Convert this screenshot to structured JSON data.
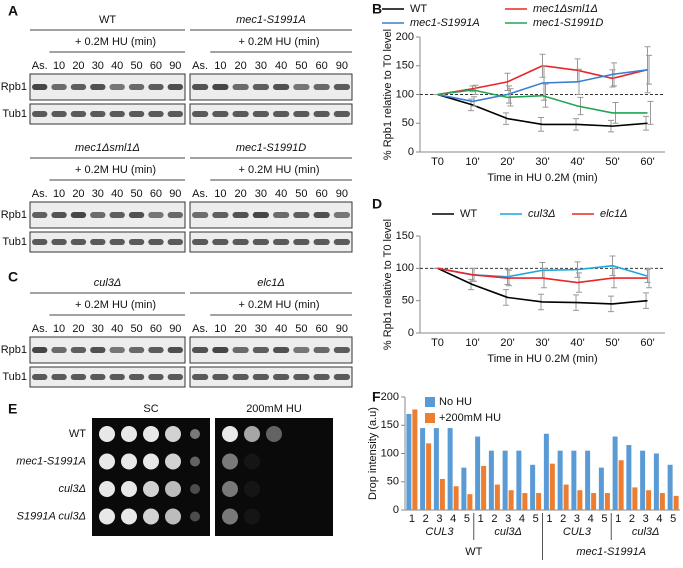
{
  "blot_panels": [
    {
      "label": "A",
      "blots": [
        {
          "title": "WT",
          "treatment": "+ 0.2M HU (min)",
          "lanes": [
            "As.",
            "10",
            "20",
            "30",
            "40",
            "50",
            "60",
            "90"
          ],
          "row_labels": [
            "Rpb1",
            "Tub1"
          ]
        },
        {
          "title": "mec1-S1991A",
          "treatment": "+ 0.2M HU (min)",
          "lanes": [
            "As.",
            "10",
            "20",
            "30",
            "40",
            "50",
            "60",
            "90"
          ]
        },
        {
          "title": "mec1Δsml1Δ",
          "treatment": "+ 0.2M HU (min)",
          "lanes": [
            "As.",
            "10",
            "20",
            "30",
            "40",
            "50",
            "60",
            "90"
          ],
          "row_labels": [
            "Rpb1",
            "Tub1"
          ]
        },
        {
          "title": "mec1-S1991D",
          "treatment": "+ 0.2M HU (min)",
          "lanes": [
            "As.",
            "10",
            "20",
            "30",
            "40",
            "50",
            "60",
            "90"
          ]
        }
      ]
    },
    {
      "label": "C",
      "blots": [
        {
          "title": "cul3Δ",
          "treatment": "+ 0.2M HU (min)",
          "lanes": [
            "As.",
            "10",
            "20",
            "30",
            "40",
            "50",
            "60",
            "90"
          ],
          "row_labels": [
            "Rpb1",
            "Tub1"
          ]
        },
        {
          "title": "elc1Δ",
          "treatment": "+ 0.2M HU (min)",
          "lanes": [
            "As.",
            "10",
            "20",
            "30",
            "40",
            "50",
            "60",
            "90"
          ]
        }
      ]
    }
  ],
  "spot_assay": {
    "label": "E",
    "conditions": [
      "SC",
      "200mM HU"
    ],
    "strains": [
      "WT",
      "mec1-S1991A",
      "cul3Δ",
      "S1991A cul3Δ"
    ]
  },
  "chart_data": [
    {
      "type": "line",
      "panel": "B",
      "categories": [
        "T0",
        "10'",
        "20'",
        "30'",
        "40'",
        "50'",
        "60'"
      ],
      "y_label": "% Rpb1 relative to T0 level",
      "x_label": "Time in HU 0.2M (min)",
      "ylim": [
        0,
        200
      ],
      "yticks": [
        0,
        50,
        100,
        150,
        200
      ],
      "reference_line": 100,
      "series": [
        {
          "name": "WT",
          "color": "#000000",
          "values": [
            100,
            82,
            58,
            48,
            48,
            45,
            50
          ],
          "errors": [
            0,
            10,
            10,
            12,
            10,
            10,
            12
          ]
        },
        {
          "name": "mec1Δsml1Δ",
          "color": "#e8262a",
          "values": [
            100,
            110,
            122,
            150,
            142,
            128,
            143
          ],
          "errors": [
            0,
            5,
            15,
            20,
            20,
            15,
            40
          ]
        },
        {
          "name": "mec1-S1991A",
          "color": "#3a7fd0",
          "values": [
            100,
            88,
            100,
            120,
            122,
            135,
            143
          ],
          "errors": [
            0,
            8,
            15,
            30,
            22,
            20,
            25
          ]
        },
        {
          "name": "mec1-S1991D",
          "color": "#23a455",
          "values": [
            100,
            108,
            95,
            98,
            80,
            68,
            68
          ],
          "errors": [
            0,
            8,
            15,
            20,
            15,
            18,
            20
          ]
        }
      ]
    },
    {
      "type": "line",
      "panel": "D",
      "categories": [
        "T0",
        "10'",
        "20'",
        "30'",
        "40'",
        "50'",
        "60'"
      ],
      "y_label": "% Rpb1 relative to T0 level",
      "x_label": "Time in HU 0.2M (min)",
      "ylim": [
        0,
        150
      ],
      "yticks": [
        0,
        50,
        100,
        150
      ],
      "reference_line": 100,
      "series": [
        {
          "name": "WT",
          "color": "#000000",
          "values": [
            100,
            75,
            55,
            48,
            47,
            45,
            50
          ],
          "errors": [
            0,
            8,
            12,
            12,
            12,
            12,
            12
          ]
        },
        {
          "name": "cul3Δ",
          "color": "#1aa7dc",
          "values": [
            100,
            90,
            87,
            97,
            98,
            104,
            88
          ],
          "errors": [
            0,
            10,
            12,
            12,
            12,
            15,
            10
          ]
        },
        {
          "name": "elc1Δ",
          "color": "#e8262a",
          "values": [
            100,
            90,
            85,
            85,
            78,
            85,
            85
          ],
          "errors": [
            0,
            10,
            12,
            15,
            15,
            15,
            15
          ]
        }
      ]
    },
    {
      "type": "bar",
      "panel": "F",
      "y_label": "Drop intensity (a.u)",
      "categories": [
        "1",
        "2",
        "3",
        "4",
        "5",
        "1",
        "2",
        "3",
        "4",
        "5",
        "1",
        "2",
        "3",
        "4",
        "5",
        "1",
        "2",
        "3",
        "4",
        "5"
      ],
      "groups": [
        "CUL3",
        "cul3Δ",
        "CUL3",
        "cul3Δ"
      ],
      "strains": [
        "WT",
        "mec1-S1991A"
      ],
      "ylim": [
        0,
        200
      ],
      "yticks": [
        0,
        50,
        100,
        150,
        200
      ],
      "series": [
        {
          "name": "No HU",
          "color": "#5b9bd5",
          "values": [
            170,
            145,
            145,
            145,
            75,
            130,
            105,
            105,
            105,
            80,
            135,
            105,
            105,
            105,
            75,
            130,
            115,
            105,
            100,
            80
          ]
        },
        {
          "name": "+200mM HU",
          "color": "#ed7d31",
          "values": [
            178,
            118,
            55,
            42,
            28,
            78,
            45,
            35,
            30,
            30,
            82,
            45,
            35,
            30,
            30,
            88,
            40,
            35,
            30,
            25
          ]
        }
      ]
    }
  ]
}
